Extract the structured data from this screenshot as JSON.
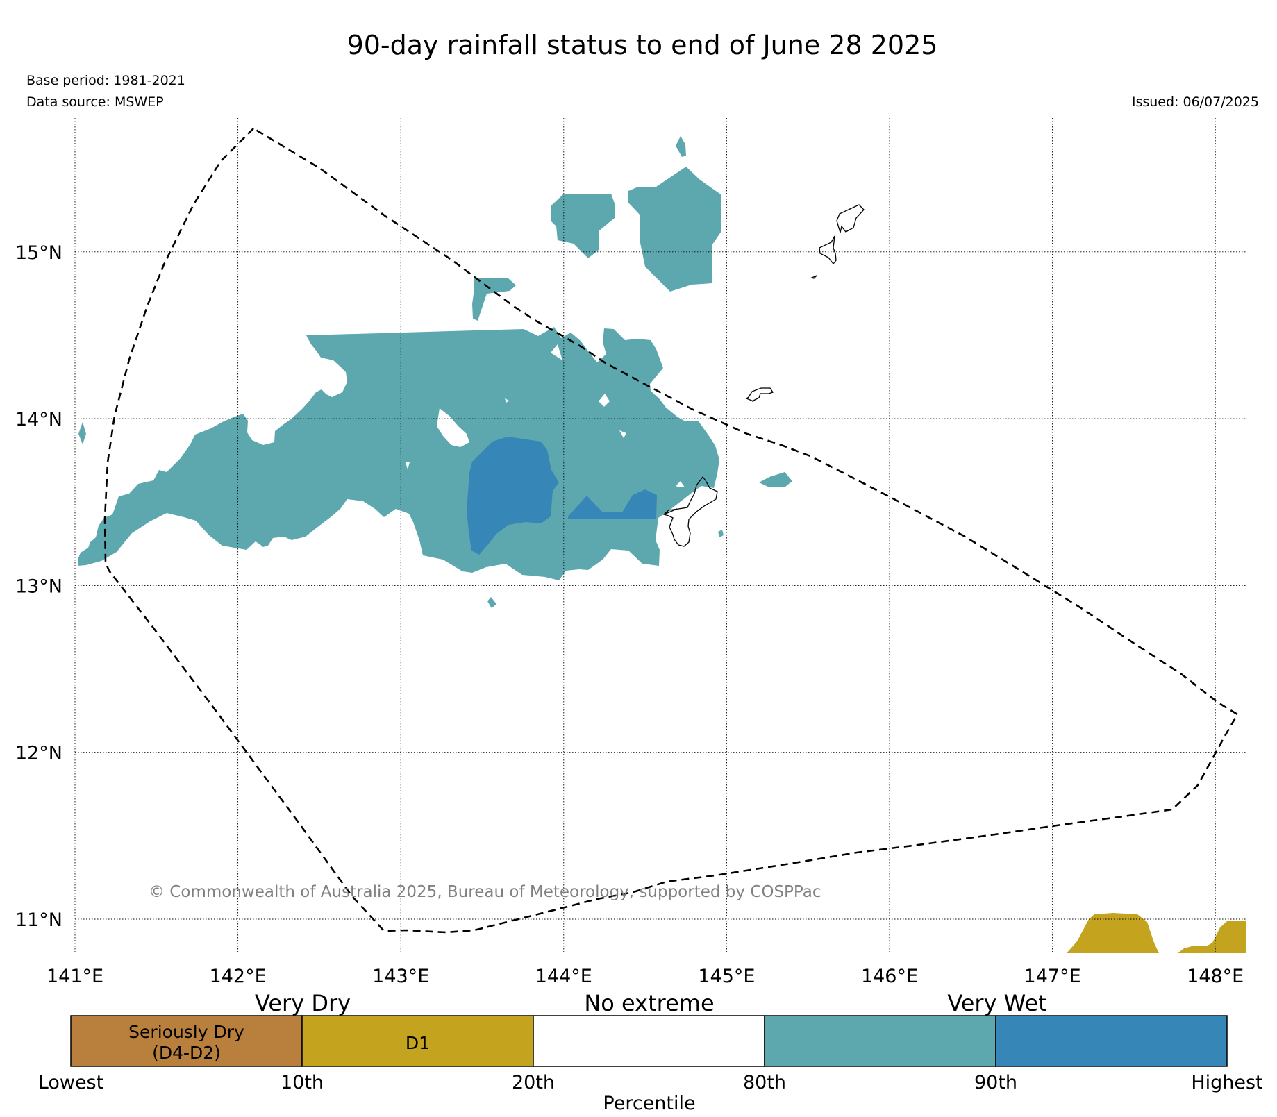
{
  "title": "90-day rainfall status to end of June 28 2025",
  "base_period": "Base period: 1981-2021",
  "data_source": "Data source: MSWEP",
  "issued": "Issued: 06/07/2025",
  "copyright": "© Commonwealth of Australia 2025, Bureau of Meteorology, supported by COSPPac",
  "map": {
    "lon_range": [
      141,
      148.2
    ],
    "lat_range": [
      10.8,
      15.75
    ],
    "lon_ticks": [
      "141°E",
      "142°E",
      "143°E",
      "144°E",
      "145°E",
      "146°E",
      "147°E",
      "148°E"
    ],
    "lat_ticks": [
      "11°N",
      "12°N",
      "13°N",
      "14°N",
      "15°N"
    ],
    "grid": "dotted",
    "boundary_style": "dashed"
  },
  "legend": {
    "categories": [
      "Very Dry",
      "No extreme",
      "Very Wet"
    ],
    "boxes": [
      {
        "label_line1": "Seriously Dry",
        "label_line2": "(D4-D2)",
        "color": "#B8803C"
      },
      {
        "label_line1": "D1",
        "label_line2": "",
        "color": "#C4A41E"
      },
      {
        "label_line1": "",
        "label_line2": "",
        "color": "#FFFFFF"
      },
      {
        "label_line1": "",
        "label_line2": "",
        "color": "#5DA8AF"
      },
      {
        "label_line1": "",
        "label_line2": "",
        "color": "#3786B8"
      }
    ],
    "ticks": [
      "Lowest",
      "10th",
      "20th",
      "80th",
      "90th",
      "Highest"
    ],
    "axis_label": "Percentile"
  },
  "colors": {
    "very_wet_80_90": "#5DA8AF",
    "highest_90_plus": "#3786B8",
    "d1": "#C4A41E",
    "seriously_dry": "#B8803C",
    "copyright": "#808080"
  }
}
